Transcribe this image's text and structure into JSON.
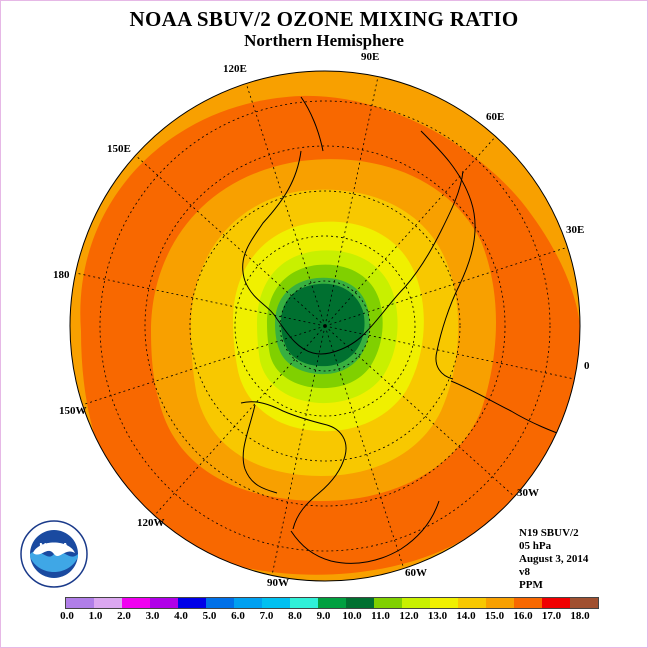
{
  "title": "NOAA SBUV/2 OZONE MIXING RATIO",
  "subtitle": "Northern Hemisphere",
  "longitude_labels": [
    "0",
    "30E",
    "60E",
    "90E",
    "120E",
    "150E",
    "180",
    "150W",
    "120W",
    "90W",
    "60W",
    "30W"
  ],
  "info": {
    "satellite": "N19 SBUV/2",
    "level": "05 hPa",
    "date": "August 3, 2014",
    "version": "v8",
    "units": "PPM"
  },
  "logo": {
    "text": "NOAA",
    "ring_text": "NATIONAL OCEANIC AND ATMOSPHERIC ADMINISTRATION · U.S. DEPARTMENT OF COMMERCE"
  },
  "colorbar": {
    "ticks": [
      "0.0",
      "1.0",
      "2.0",
      "3.0",
      "4.0",
      "5.0",
      "6.0",
      "7.0",
      "8.0",
      "9.0",
      "10.0",
      "11.0",
      "12.0",
      "13.0",
      "14.0",
      "15.0",
      "16.0",
      "17.0",
      "18.0"
    ],
    "colors": [
      "#b07ee8",
      "#dba7f0",
      "#f000f0",
      "#b000e8",
      "#0000e8",
      "#0070e8",
      "#00a0f0",
      "#00c0f0",
      "#30f0d8",
      "#00a040",
      "#007030",
      "#80d000",
      "#c8f000",
      "#f0f000",
      "#f8c800",
      "#f8a000",
      "#f86800",
      "#f00000",
      "#a05030"
    ]
  },
  "map_colors": {
    "ocean_edge": "#f8a000",
    "band_16": "#f86800",
    "band_15": "#f8a000",
    "band_14": "#f8c800",
    "band_13": "#f0f000",
    "band_12": "#c8f000",
    "band_11": "#80d000",
    "band_10": "#38b040",
    "band_9": "#007030"
  }
}
